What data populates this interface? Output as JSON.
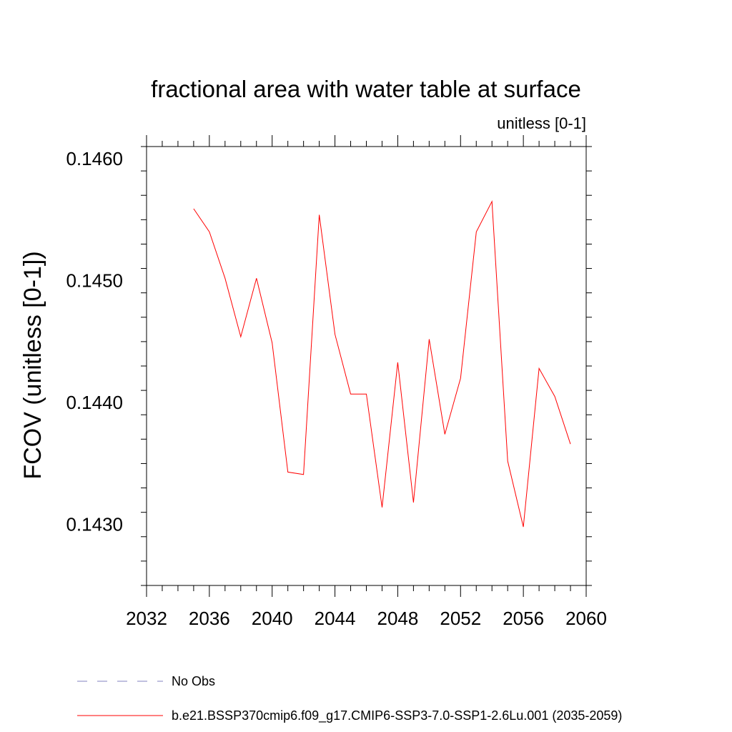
{
  "chart_data": {
    "type": "line",
    "title": "fractional area with water table at surface",
    "units_label": "unitless [0-1]",
    "ylabel": "FCOV  (unitless [0-1])",
    "xlabel": "",
    "xlim": [
      2032,
      2060
    ],
    "ylim": [
      0.1425,
      0.1461
    ],
    "x_ticks": [
      2032,
      2036,
      2040,
      2044,
      2048,
      2052,
      2056,
      2060
    ],
    "x_tick_labels": [
      "2032",
      "2036",
      "2040",
      "2044",
      "2048",
      "2052",
      "2056",
      "2060"
    ],
    "y_ticks": [
      0.143,
      0.144,
      0.145,
      0.146
    ],
    "y_tick_labels": [
      "0.1430",
      "0.1440",
      "0.1450",
      "0.1460"
    ],
    "y_minor_step": 0.0002,
    "x_minor_step": 1,
    "grid": false,
    "legend_placement": "bottom",
    "series": [
      {
        "name": "b.e21.BSSP370cmip6.f09_g17.CMIP6-SSP3-7.0-SSP1-2.6Lu.001 (2035-2059)",
        "color": "#ff0000",
        "style": "solid",
        "x": [
          2035,
          2036,
          2037,
          2038,
          2039,
          2040,
          2041,
          2042,
          2043,
          2044,
          2045,
          2046,
          2047,
          2048,
          2049,
          2050,
          2051,
          2052,
          2053,
          2054,
          2055,
          2056,
          2057,
          2058,
          2059
        ],
        "y": [
          0.14559,
          0.1454,
          0.14502,
          0.14454,
          0.14502,
          0.14449,
          0.14343,
          0.14341,
          0.14554,
          0.14456,
          0.14407,
          0.14407,
          0.14314,
          0.14433,
          0.14318,
          0.14452,
          0.14374,
          0.1442,
          0.1454,
          0.14565,
          0.14352,
          0.14298,
          0.14428,
          0.14405,
          0.14366
        ]
      }
    ],
    "legend": [
      {
        "label": "No Obs",
        "color": "#8080c0",
        "style": "dashed"
      },
      {
        "label": "b.e21.BSSP370cmip6.f09_g17.CMIP6-SSP3-7.0-SSP1-2.6Lu.001 (2035-2059)",
        "color": "#ff0000",
        "style": "solid"
      }
    ]
  }
}
